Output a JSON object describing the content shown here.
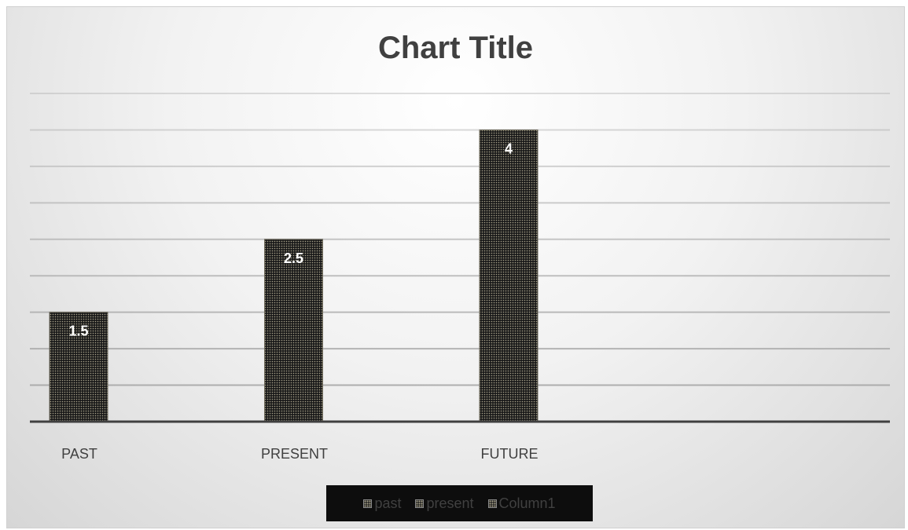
{
  "chart_data": {
    "type": "bar",
    "title": "Chart Title",
    "categories": [
      "PAST",
      "PRESENT",
      "FUTURE",
      ""
    ],
    "series": [
      {
        "name": "past",
        "values": [
          1.5,
          2.5,
          4,
          null
        ]
      },
      {
        "name": "present",
        "values": [
          null,
          null,
          null,
          null
        ]
      },
      {
        "name": "Column1",
        "values": [
          null,
          null,
          null,
          null
        ]
      }
    ],
    "data_labels": [
      "1.5",
      "2.5",
      "4"
    ],
    "ylim": [
      0,
      4.5
    ],
    "y_major_unit": 0.5,
    "grid": true,
    "legend_position": "bottom",
    "bar_fill": "#1a1a1a",
    "bar_dot_color": "#a8a28a",
    "gridline_color": "#a6a6a6",
    "axis_color": "#404040"
  },
  "legend": {
    "items": [
      "past",
      "present",
      "Column1"
    ]
  }
}
